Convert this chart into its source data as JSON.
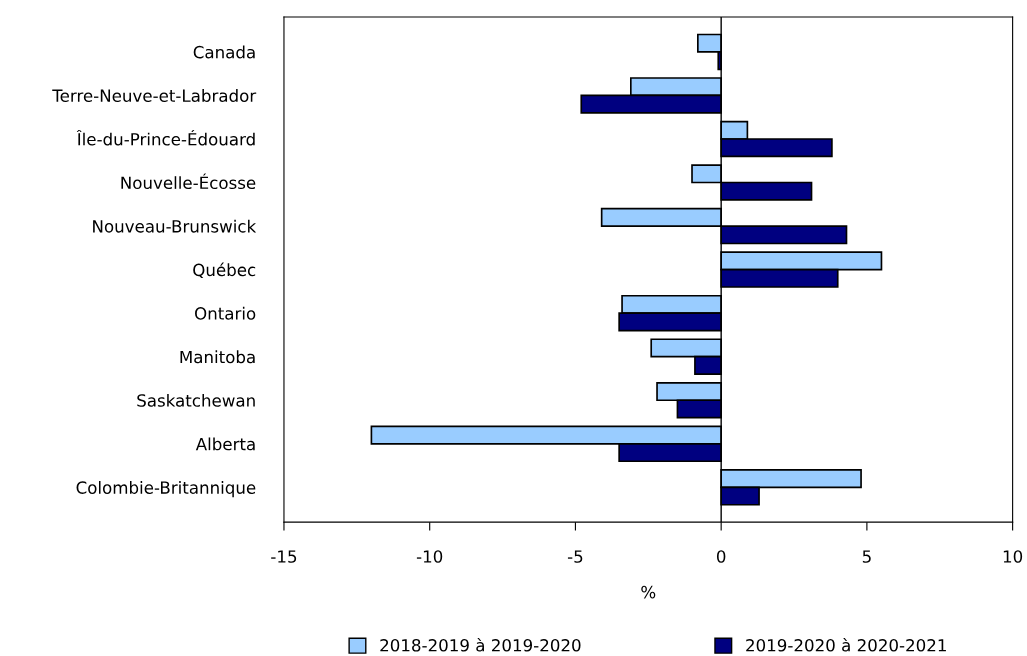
{
  "chart_data": {
    "type": "bar",
    "orientation": "horizontal",
    "xlabel": "%",
    "categories": [
      "Canada",
      "Terre-Neuve-et-Labrador",
      "Île-du-Prince-Édouard",
      "Nouvelle-Écosse",
      "Nouveau-Brunswick",
      "Québec",
      "Ontario",
      "Manitoba",
      "Saskatchewan",
      "Alberta",
      "Colombie-Britannique"
    ],
    "series": [
      {
        "name": "2018-2019 à 2019-2020",
        "color": "#99ccff",
        "values": [
          -0.8,
          -3.1,
          0.9,
          -1.0,
          -4.1,
          5.5,
          -3.4,
          -2.4,
          -2.2,
          -12.0,
          4.8
        ]
      },
      {
        "name": "2019-2020 à 2020-2021",
        "color": "#000080",
        "values": [
          -0.1,
          -4.8,
          3.8,
          3.1,
          4.3,
          4.0,
          -3.5,
          -0.9,
          -1.5,
          -3.5,
          1.3
        ]
      }
    ],
    "xlim": [
      -15,
      10
    ],
    "xticks": [
      -15,
      -10,
      -5,
      0,
      5,
      10
    ],
    "ref_lines": [
      {
        "axis": "x",
        "value": 0
      }
    ],
    "grid": false,
    "legend": "bottom"
  }
}
